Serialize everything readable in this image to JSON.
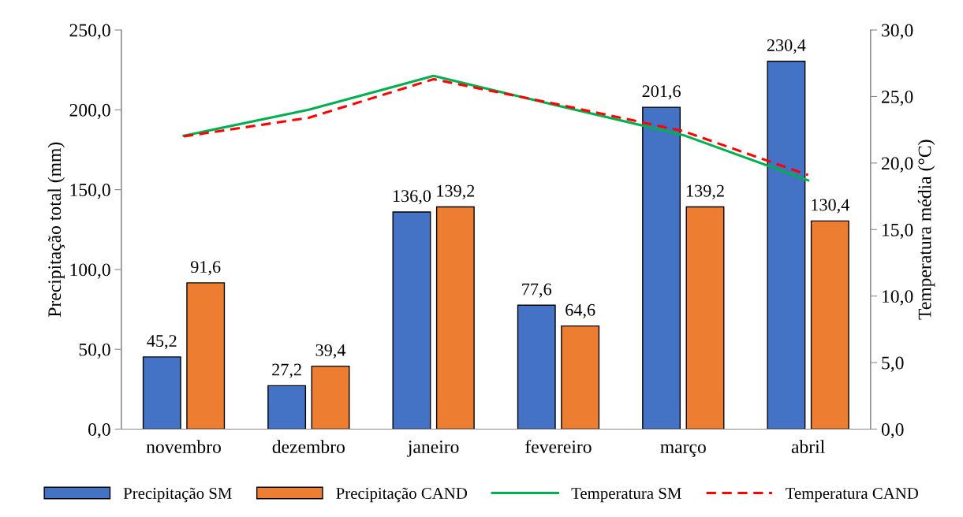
{
  "chart_data": {
    "type": "bar",
    "categories": [
      "novembro",
      "dezembro",
      "janeiro",
      "fevereiro",
      "março",
      "abril"
    ],
    "ylabel": "Precipitação total (mm)",
    "y2label": "Temperatura média (°C)",
    "ylim": [
      0,
      250
    ],
    "yticks": [
      {
        "value": 0,
        "label": "0,0"
      },
      {
        "value": 50,
        "label": "50,0"
      },
      {
        "value": 100,
        "label": "100,0"
      },
      {
        "value": 150,
        "label": "150,0"
      },
      {
        "value": 200,
        "label": "200,0"
      },
      {
        "value": 250,
        "label": "250,0"
      }
    ],
    "y2lim": [
      0,
      30
    ],
    "y2ticks": [
      {
        "value": 0,
        "label": "0,0"
      },
      {
        "value": 5,
        "label": "5,0"
      },
      {
        "value": 10,
        "label": "10,0"
      },
      {
        "value": 15,
        "label": "15,0"
      },
      {
        "value": 20,
        "label": "20,0"
      },
      {
        "value": 25,
        "label": "25,0"
      },
      {
        "value": 30,
        "label": "30,0"
      }
    ],
    "series": [
      {
        "name": "Precipitação SM",
        "color": "#4472c4",
        "values": [
          45.2,
          27.2,
          136.0,
          77.6,
          201.6,
          230.4
        ],
        "value_labels": [
          "45,2",
          "27,2",
          "136,0",
          "77,6",
          "201,6",
          "230,4"
        ]
      },
      {
        "name": "Precipitação CAND",
        "color": "#ed7d31",
        "values": [
          91.6,
          39.4,
          139.2,
          64.6,
          139.2,
          130.4
        ],
        "value_labels": [
          "91,6",
          "39,4",
          "139,2",
          "64,6",
          "139,2",
          "130,4"
        ]
      },
      {
        "name": "Temperatura SM",
        "type": "line",
        "axis": "y2",
        "color": "#00b050",
        "line_style": "solid",
        "values": [
          22.05,
          24.0,
          26.55,
          24.3,
          22.1,
          18.7
        ]
      },
      {
        "name": "Temperatura CAND",
        "type": "line",
        "axis": "y2",
        "color": "#ff0000",
        "line_style": "dashed",
        "values": [
          22.0,
          23.4,
          26.3,
          24.4,
          22.4,
          19.1
        ]
      }
    ],
    "legend": "bottom",
    "grid": false,
    "marker": "none"
  }
}
